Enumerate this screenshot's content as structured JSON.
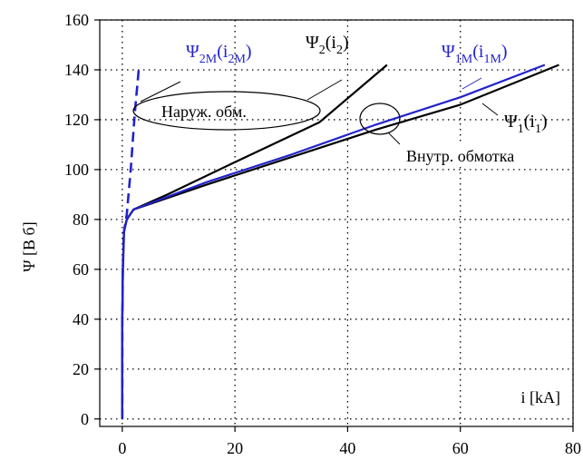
{
  "chart_data": {
    "type": "line",
    "title": "",
    "xlabel": "i [kA]",
    "ylabel": "Ψ [В б]",
    "xlim": [
      -4,
      80
    ],
    "ylim": [
      -3,
      160
    ],
    "x_ticks": [
      0,
      20,
      40,
      60,
      80
    ],
    "y_ticks": [
      0,
      20,
      40,
      60,
      80,
      100,
      120,
      140,
      160
    ],
    "x_tick_labels": [
      "0",
      "20",
      "40",
      "60",
      "80"
    ],
    "y_tick_labels": [
      "0",
      "20",
      "40",
      "60",
      "80",
      "100",
      "120",
      "140",
      "160"
    ],
    "grid": true,
    "grid_style": "dotted",
    "series": [
      {
        "id": "psi2",
        "color": "#000000",
        "dash": "solid",
        "points": [
          [
            0,
            0
          ],
          [
            0,
            40
          ],
          [
            0.1,
            60
          ],
          [
            0.3,
            75
          ],
          [
            0.8,
            80
          ],
          [
            2.0,
            84
          ],
          [
            8,
            90
          ],
          [
            20,
            103
          ],
          [
            35,
            119
          ],
          [
            47,
            142
          ]
        ]
      },
      {
        "id": "psi1",
        "color": "#000000",
        "dash": "solid",
        "points": [
          [
            0,
            0
          ],
          [
            0,
            40
          ],
          [
            0.1,
            60
          ],
          [
            0.3,
            75
          ],
          [
            0.8,
            80
          ],
          [
            2.0,
            84
          ],
          [
            15,
            94
          ],
          [
            30,
            105
          ],
          [
            45,
            116
          ],
          [
            60,
            126
          ],
          [
            77.5,
            142
          ]
        ]
      },
      {
        "id": "psi1m",
        "color": "#2222cc",
        "dash": "solid",
        "points": [
          [
            0,
            0
          ],
          [
            0,
            40
          ],
          [
            0.1,
            60
          ],
          [
            0.3,
            75
          ],
          [
            0.8,
            80
          ],
          [
            2.0,
            84
          ],
          [
            15,
            95
          ],
          [
            30,
            106
          ],
          [
            45,
            118
          ],
          [
            60,
            129
          ],
          [
            75,
            142
          ]
        ]
      },
      {
        "id": "psi2m",
        "color": "#2222cc",
        "dash": "dashed",
        "points": [
          [
            0,
            0
          ],
          [
            0,
            40
          ],
          [
            0.1,
            60
          ],
          [
            0.3,
            75
          ],
          [
            0.8,
            82
          ],
          [
            1.5,
            100
          ],
          [
            2.2,
            122
          ],
          [
            3.0,
            142
          ]
        ]
      }
    ],
    "annotations": {
      "psi2": {
        "main": "Ψ",
        "sub": "2",
        "open": "(i",
        "sub2": "2",
        "close": ")",
        "color": "#000000"
      },
      "psi1": {
        "main": "Ψ",
        "sub": "1",
        "open": "(i",
        "sub2": "1",
        "close": ")",
        "color": "#000000"
      },
      "psi1m": {
        "main": "Ψ",
        "sub": "1M",
        "open": "(i",
        "sub2": "1M",
        "close": ")",
        "color": "#2222cc"
      },
      "psi2m": {
        "main": "Ψ",
        "sub": "2M",
        "open": "(i",
        "sub2": "2M",
        "close": ")",
        "color": "#2222cc"
      },
      "outer_winding": "Наруж. обм.",
      "inner_winding": "Внутр. обмотка"
    }
  }
}
